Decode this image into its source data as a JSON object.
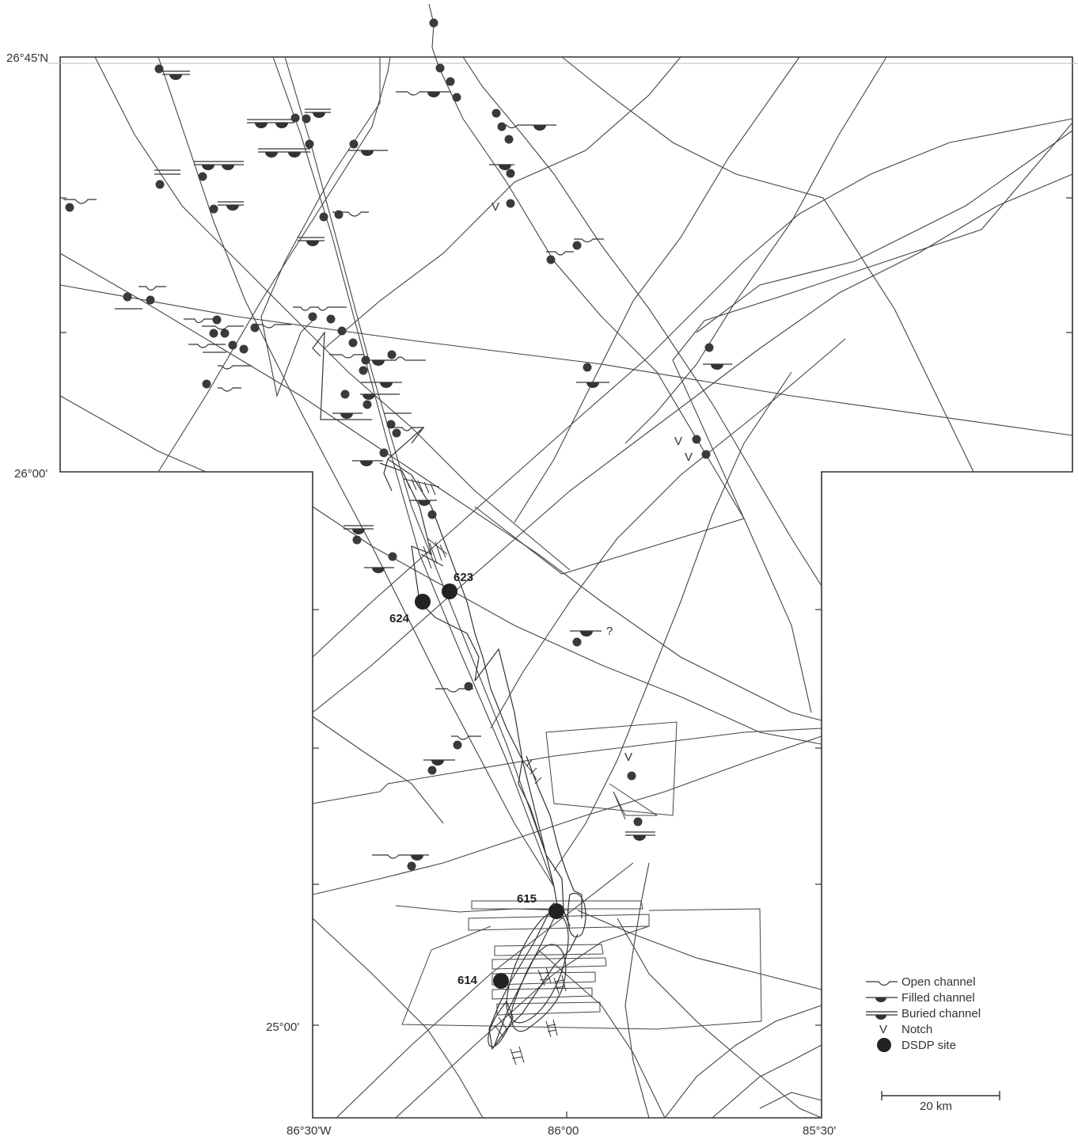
{
  "latitude_labels": [
    "26°45'N",
    "26°00'",
    "25°00'"
  ],
  "longitude_labels": [
    "86°30'W",
    "86°00",
    "85°30'"
  ],
  "dsdp_sites": [
    "623",
    "624",
    "615",
    "614"
  ],
  "notch_symbol": "V",
  "uncertain_mark": "?",
  "legend": {
    "items": [
      {
        "symbol": "open-channel",
        "label": "Open channel"
      },
      {
        "symbol": "filled-channel",
        "label": "Filled channel"
      },
      {
        "symbol": "buried-channel",
        "label": "Buried channel"
      },
      {
        "symbol": "notch",
        "label": "Notch"
      },
      {
        "symbol": "dsdp-site",
        "label": "DSDP site"
      }
    ]
  },
  "scale_bar": {
    "label": "20 km"
  },
  "colors": {
    "ink": "#333333",
    "background": "#ffffff"
  }
}
